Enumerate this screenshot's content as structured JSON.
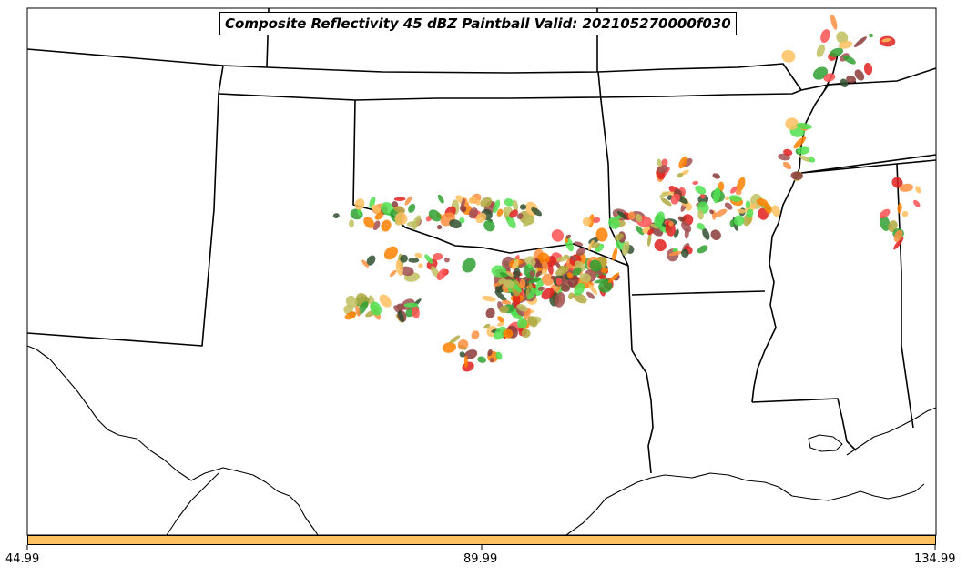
{
  "title": "Composite Reflectivity 45 dBZ Paintball Valid: 202105270000f030",
  "colorbar": {
    "color": "#ffc060",
    "ticks": [
      "44.99",
      "89.99",
      "134.99"
    ]
  },
  "colors": {
    "background": "#ffffff",
    "boundaries": "#000000",
    "member_palette": [
      "#e0201f",
      "#ff5050",
      "#ff9040",
      "#ff8000",
      "#ffc060",
      "#b0a840",
      "#8b3a3a",
      "#a05050",
      "#30a030",
      "#50e050",
      "#305030",
      "#c0c060"
    ]
  }
}
